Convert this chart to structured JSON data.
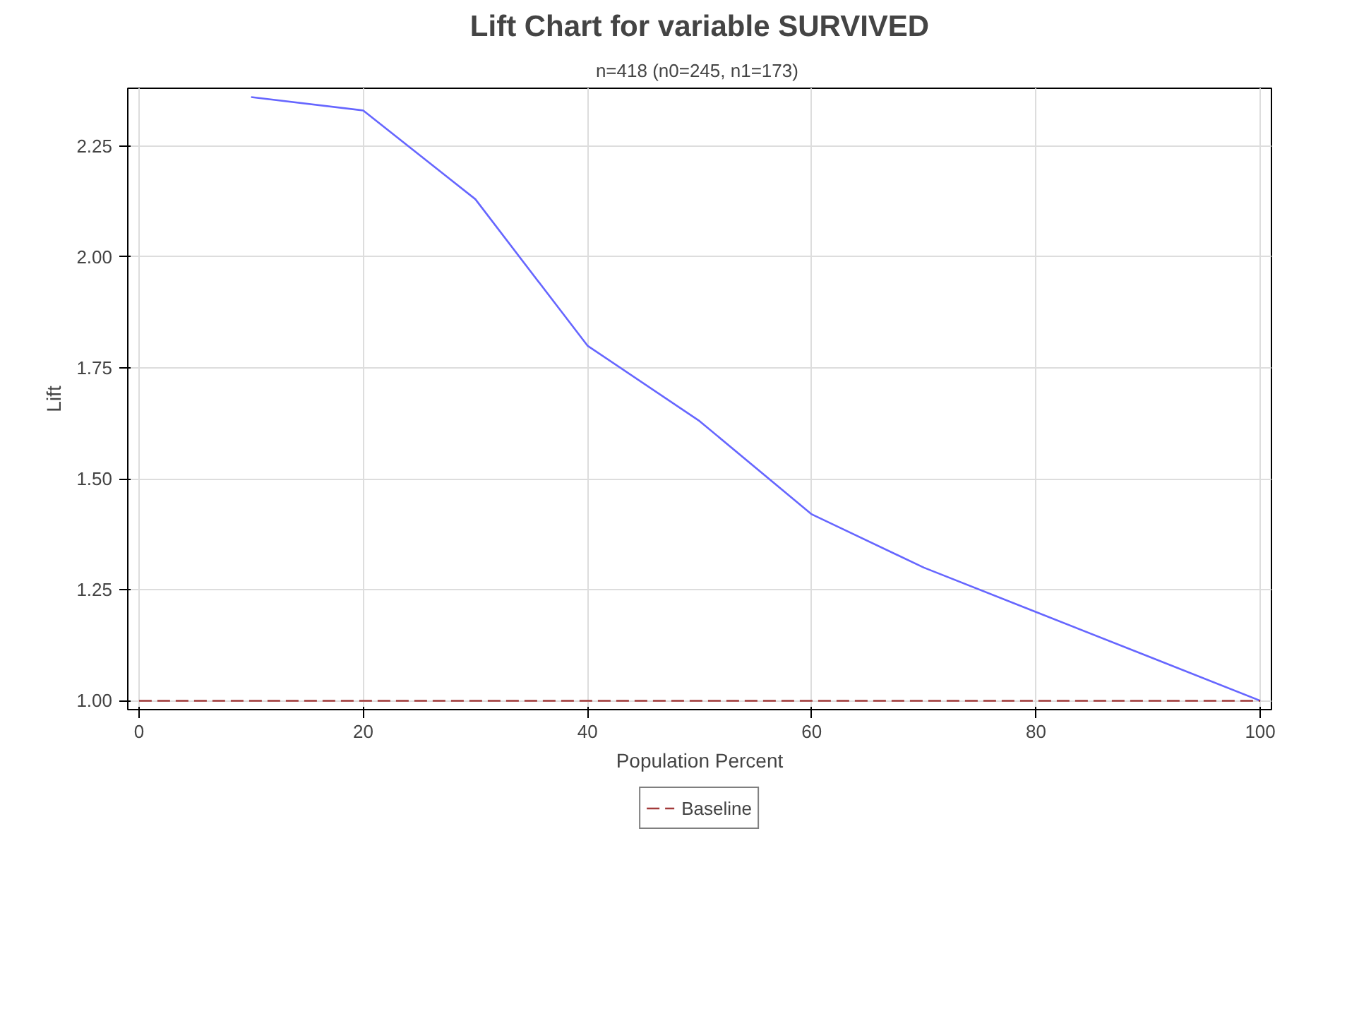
{
  "chart_data": {
    "type": "line",
    "title": "Lift Chart for variable SURVIVED",
    "subtitle": "n=418  (n0=245, n1=173)",
    "xlabel": "Population Percent",
    "ylabel": "Lift",
    "xlim": [
      -1,
      101
    ],
    "ylim": [
      0.98,
      2.38
    ],
    "xticks": [
      0,
      20,
      40,
      60,
      80,
      100
    ],
    "yticks": [
      {
        "value": 1,
        "label": "1.00"
      },
      {
        "value": 1.25,
        "label": "1.25"
      },
      {
        "value": 1.5,
        "label": "1.50"
      },
      {
        "value": 1.75,
        "label": "1.75"
      },
      {
        "value": 2,
        "label": "2.00"
      },
      {
        "value": 2.25,
        "label": "2.25"
      }
    ],
    "grid": true,
    "legend": "bottom",
    "series": [
      {
        "color": "#6666ff",
        "line_style": "solid",
        "x": [
          10,
          20,
          30,
          40,
          50,
          60,
          70,
          80,
          90,
          100
        ],
        "values": [
          2.36,
          2.33,
          2.13,
          1.8,
          1.63,
          1.42,
          1.3,
          1.2,
          1.1,
          1.0
        ]
      },
      {
        "name": "Baseline",
        "color": "#a23a3a",
        "line_style": "dashed",
        "x": [
          0,
          100
        ],
        "values": [
          1.0,
          1.0
        ]
      }
    ]
  }
}
